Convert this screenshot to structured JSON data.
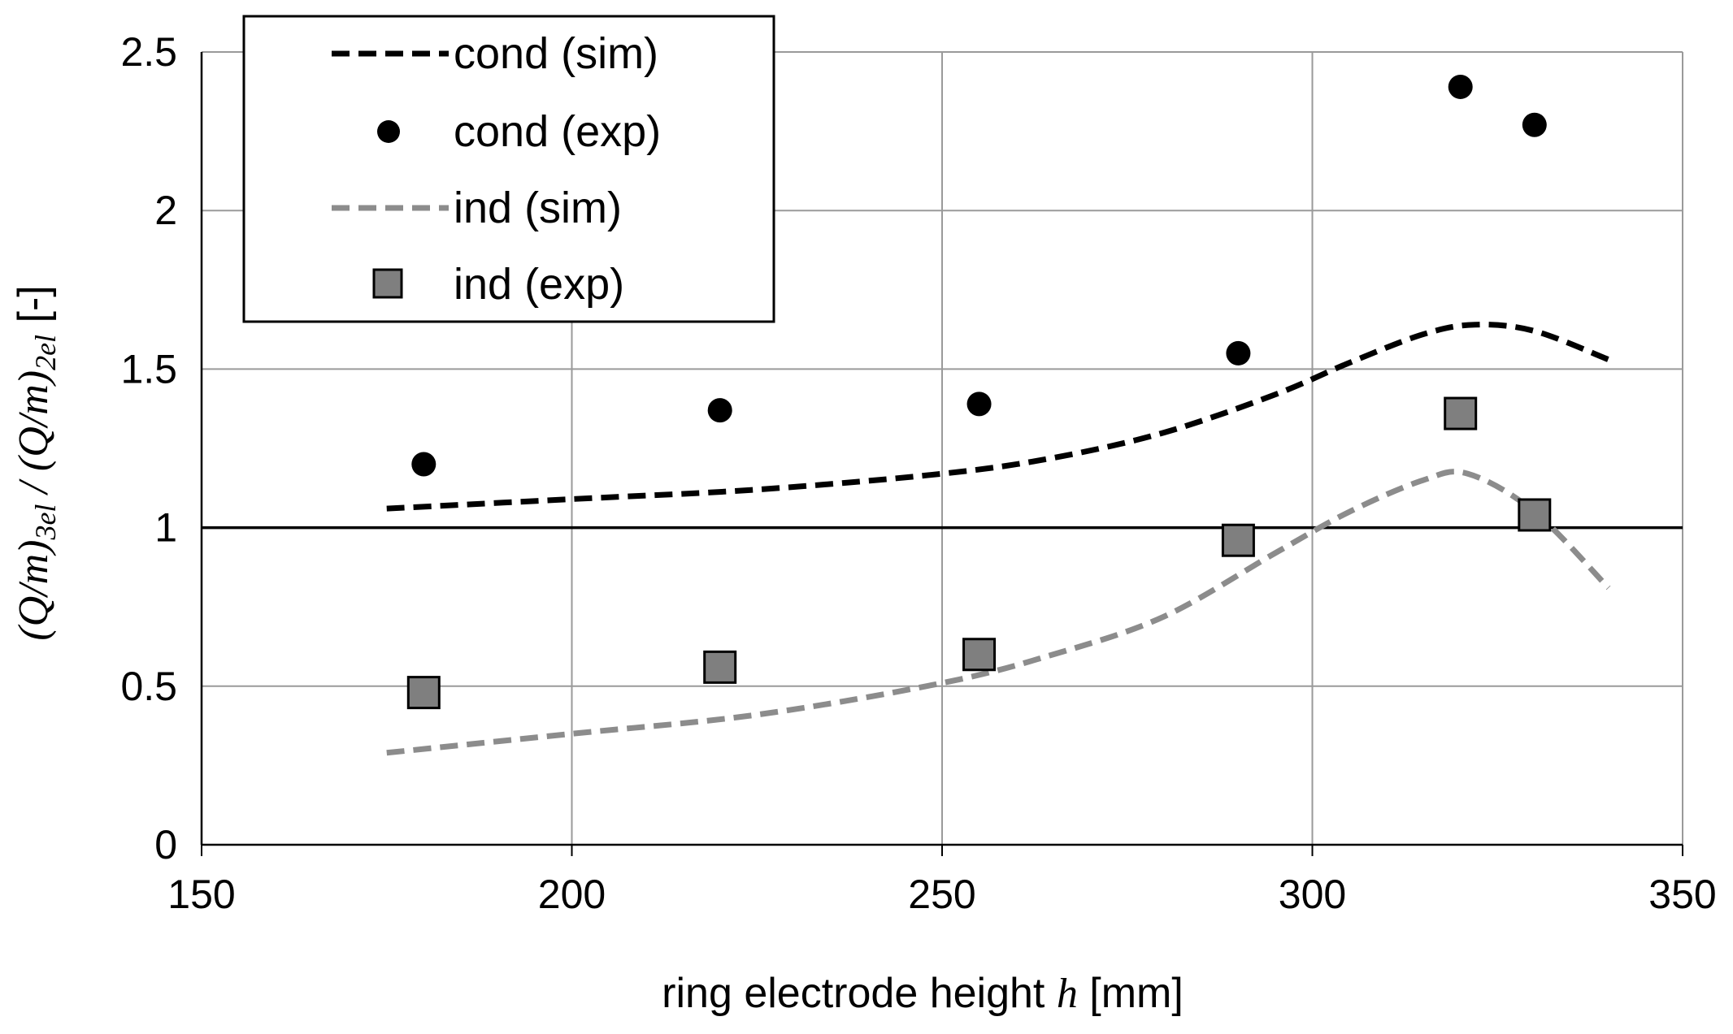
{
  "chart_data": {
    "type": "line",
    "title": "",
    "xlabel": "ring electrode height h [mm]",
    "xlabel_parts": {
      "prefix": "ring electrode height ",
      "var": "h",
      "suffix": " [mm]"
    },
    "ylabel": "(Q/m)3el / (Q/m)2el [-]",
    "ylabel_parts": {
      "q1": "(Q/m)",
      "sub1": "3el",
      "sep": " / ",
      "q2": "(Q/m)",
      "sub2": "2el",
      "unit": " [-]"
    },
    "xlim": [
      150,
      350
    ],
    "ylim": [
      0,
      2.5
    ],
    "xticks": [
      150,
      200,
      250,
      300,
      350
    ],
    "xtick_labels": [
      "150",
      "200",
      "250",
      "300",
      "350"
    ],
    "yticks": [
      0,
      0.5,
      1,
      1.5,
      2,
      2.5
    ],
    "ytick_labels": [
      "0",
      "0.5",
      "1",
      "1.5",
      "2",
      "2.5"
    ],
    "grid": true,
    "reference_line": 1,
    "legend_position": "top-left",
    "series": [
      {
        "name": "cond (sim)",
        "kind": "line",
        "style": "dashed",
        "color": "#000000",
        "x": [
          175,
          200,
          225,
          250,
          265,
          280,
          295,
          305,
          315,
          322,
          330,
          340
        ],
        "y": [
          1.06,
          1.09,
          1.12,
          1.17,
          1.22,
          1.3,
          1.42,
          1.52,
          1.61,
          1.64,
          1.62,
          1.53
        ]
      },
      {
        "name": "cond (exp)",
        "kind": "scatter",
        "marker": "circle",
        "color": "#000000",
        "x": [
          180,
          220,
          255,
          290,
          320,
          330
        ],
        "y": [
          1.2,
          1.37,
          1.39,
          1.55,
          2.39,
          2.27
        ]
      },
      {
        "name": "ind (sim)",
        "kind": "line",
        "style": "dashed",
        "color": "#8c8c8c",
        "x": [
          175,
          200,
          225,
          250,
          265,
          280,
          295,
          305,
          315,
          321,
          330,
          340
        ],
        "y": [
          0.29,
          0.35,
          0.41,
          0.51,
          0.6,
          0.72,
          0.92,
          1.05,
          1.15,
          1.17,
          1.05,
          0.81
        ]
      },
      {
        "name": "ind (exp)",
        "kind": "scatter",
        "marker": "square",
        "color": "#7f7f7f",
        "x": [
          180,
          220,
          255,
          290,
          320,
          330
        ],
        "y": [
          0.48,
          0.56,
          0.6,
          0.96,
          1.36,
          1.04
        ]
      }
    ]
  }
}
